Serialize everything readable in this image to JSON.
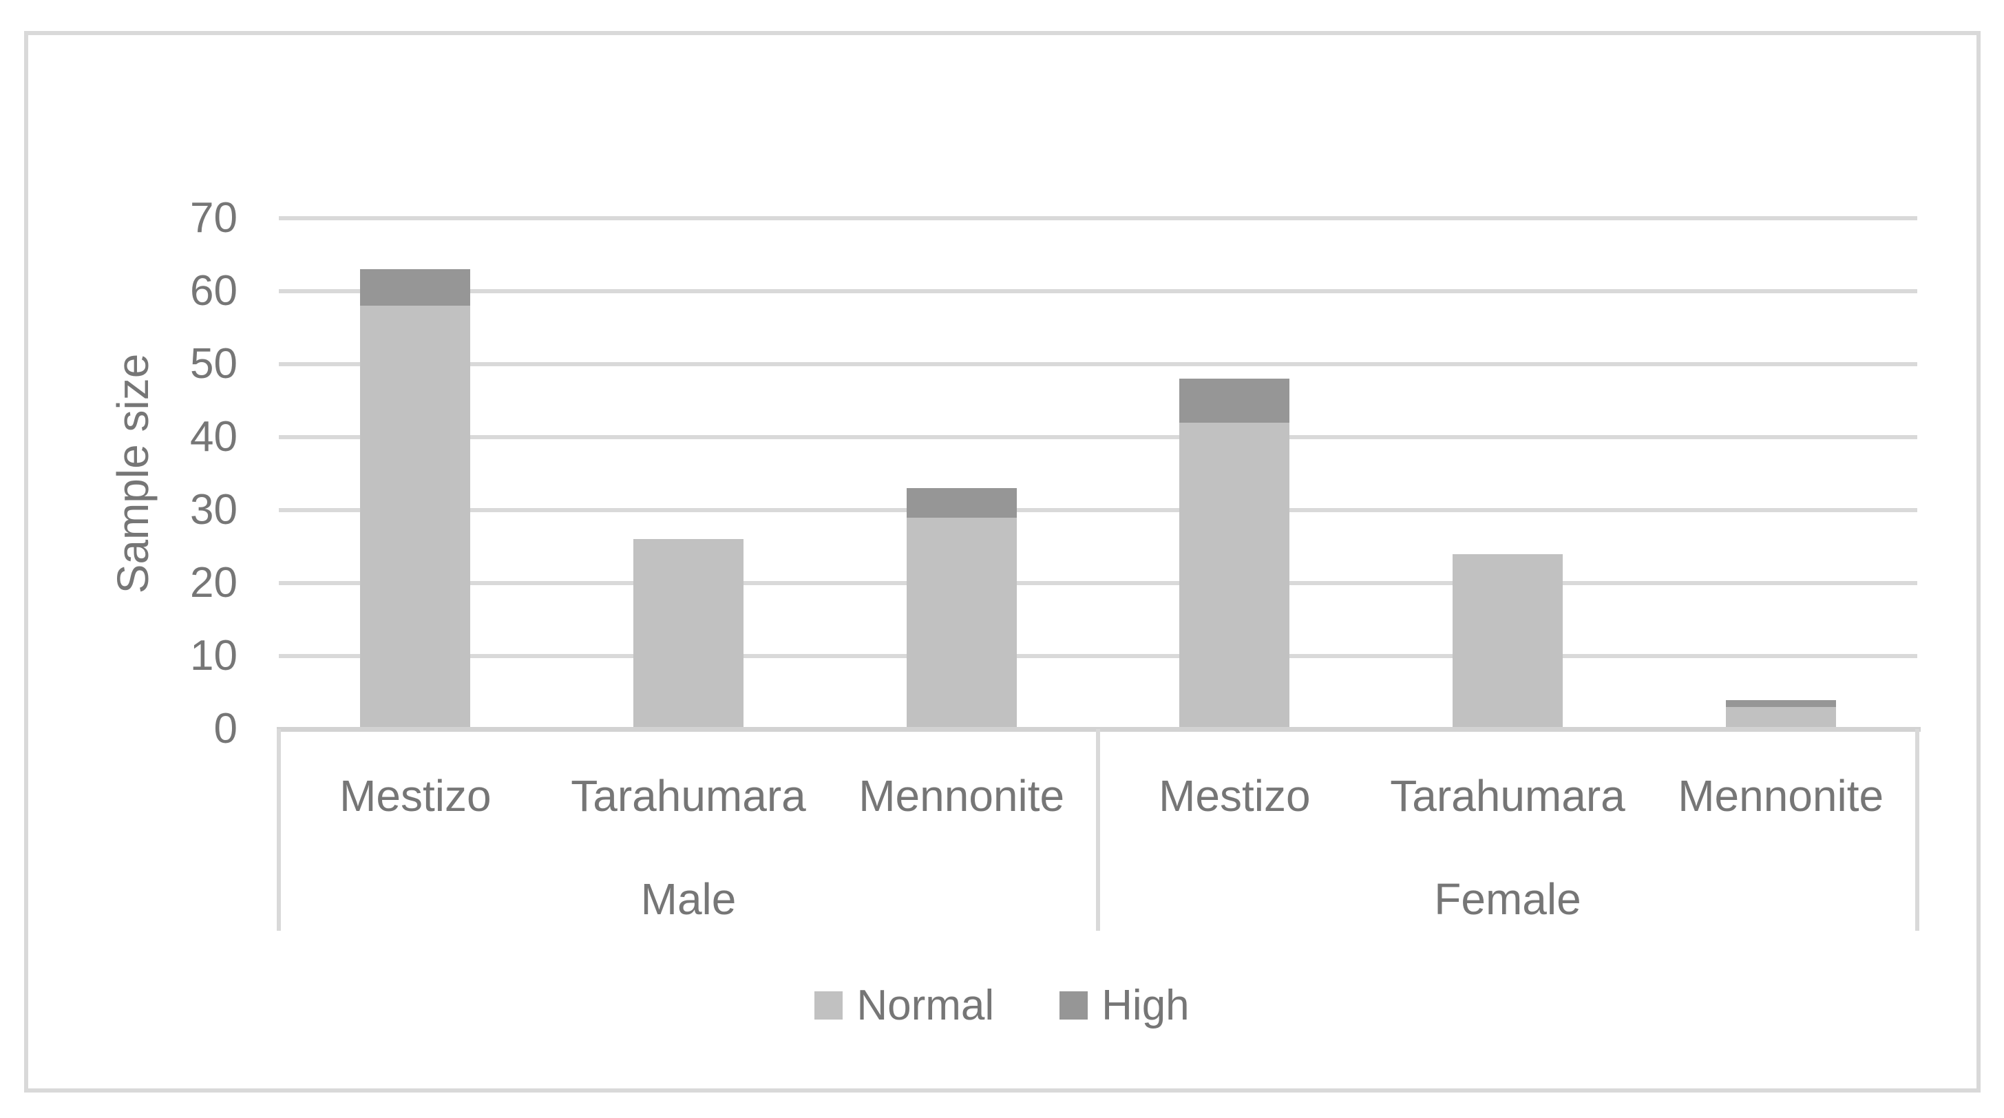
{
  "chart_data": {
    "type": "bar",
    "stacked": true,
    "title": "",
    "ylabel": "Sample size",
    "ylim": [
      0,
      70
    ],
    "ytick_step": 10,
    "yticks": [
      0,
      10,
      20,
      30,
      40,
      50,
      60,
      70
    ],
    "grid": "horizontal",
    "legend_position": "bottom",
    "groups": [
      {
        "label": "Male",
        "categories": [
          "Mestizo",
          "Tarahumara",
          "Mennonite"
        ]
      },
      {
        "label": "Female",
        "categories": [
          "Mestizo",
          "Tarahumara",
          "Mennonite"
        ]
      }
    ],
    "categories": [
      "Mestizo",
      "Tarahumara",
      "Mennonite",
      "Mestizo",
      "Tarahumara",
      "Mennonite"
    ],
    "series": [
      {
        "name": "Normal",
        "color": "#c1c1c1",
        "values": [
          58,
          26,
          29,
          42,
          24,
          3
        ]
      },
      {
        "name": "High",
        "color": "#969696",
        "values": [
          5,
          0,
          4,
          6,
          0,
          1
        ]
      }
    ],
    "totals": [
      63,
      26,
      33,
      48,
      24,
      4
    ]
  },
  "colors": {
    "normal": "#c1c1c1",
    "high": "#969696",
    "gridline": "#d9d9d9",
    "axis_line": "#d2d2d2",
    "border": "#d9d9d9",
    "text": "#767676",
    "background": "#ffffff"
  }
}
